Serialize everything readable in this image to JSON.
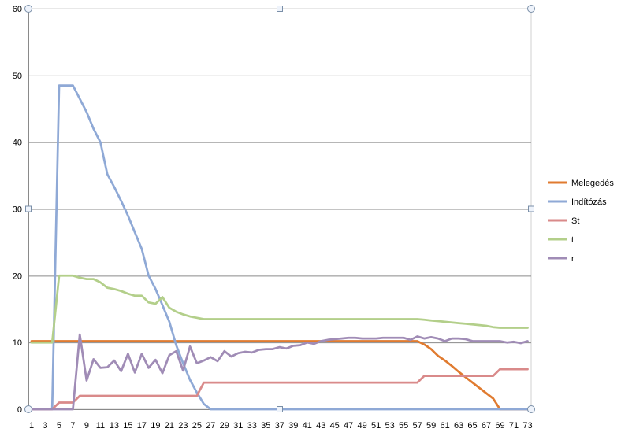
{
  "chart_data": {
    "type": "line",
    "x": [
      1,
      2,
      3,
      4,
      5,
      6,
      7,
      8,
      9,
      10,
      11,
      12,
      13,
      14,
      15,
      16,
      17,
      18,
      19,
      20,
      21,
      22,
      23,
      24,
      25,
      26,
      27,
      28,
      29,
      30,
      31,
      32,
      33,
      34,
      35,
      36,
      37,
      38,
      39,
      40,
      41,
      42,
      43,
      44,
      45,
      46,
      47,
      48,
      49,
      50,
      51,
      52,
      53,
      54,
      55,
      56,
      57,
      58,
      59,
      60,
      61,
      62,
      63,
      64,
      65,
      66,
      67,
      68,
      69,
      70,
      71,
      72,
      73
    ],
    "x_tick_labels": [
      "1",
      "3",
      "5",
      "7",
      "9",
      "11",
      "13",
      "15",
      "17",
      "19",
      "21",
      "23",
      "25",
      "27",
      "29",
      "31",
      "33",
      "35",
      "37",
      "39",
      "41",
      "43",
      "45",
      "47",
      "49",
      "51",
      "53",
      "55",
      "57",
      "59",
      "61",
      "63",
      "65",
      "67",
      "69",
      "71",
      "73"
    ],
    "y_tick_labels": [
      "0",
      "10",
      "20",
      "30",
      "40",
      "50",
      "60"
    ],
    "ylim": [
      0,
      60
    ],
    "grid": true,
    "legend_position": "right",
    "series": [
      {
        "name": "Melegedés",
        "color": "#E07B30",
        "values": [
          10.2,
          10.2,
          10.2,
          10.2,
          10.2,
          10.2,
          10.2,
          10.2,
          10.2,
          10.2,
          10.2,
          10.2,
          10.2,
          10.2,
          10.2,
          10.2,
          10.2,
          10.2,
          10.2,
          10.2,
          10.2,
          10.2,
          10.2,
          10.2,
          10.2,
          10.2,
          10.2,
          10.2,
          10.2,
          10.2,
          10.2,
          10.2,
          10.2,
          10.2,
          10.2,
          10.2,
          10.2,
          10.2,
          10.2,
          10.2,
          10.2,
          10.2,
          10.2,
          10.2,
          10.2,
          10.2,
          10.2,
          10.2,
          10.2,
          10.2,
          10.2,
          10.2,
          10.2,
          10.2,
          10.2,
          10.2,
          10.2,
          9.7,
          9.0,
          8.0,
          7.3,
          6.5,
          5.6,
          4.8,
          4.0,
          3.2,
          2.4,
          1.6,
          0,
          0,
          0,
          0,
          0
        ]
      },
      {
        "name": "Indítózás",
        "color": "#8FA9D6",
        "values": [
          0,
          0,
          0,
          0,
          48.5,
          48.5,
          48.5,
          46.5,
          44.5,
          42.0,
          40.0,
          35.2,
          33.3,
          31.2,
          29.0,
          26.5,
          24.0,
          20.0,
          18.0,
          15.6,
          13.1,
          9.6,
          6.9,
          4.4,
          2.5,
          0.8,
          0,
          0,
          0,
          0,
          0,
          0,
          0,
          0,
          0,
          0,
          0,
          0,
          0,
          0,
          0,
          0,
          0,
          0,
          0,
          0,
          0,
          0,
          0,
          0,
          0,
          0,
          0,
          0,
          0,
          0,
          0,
          0,
          0,
          0,
          0,
          0,
          0,
          0,
          0,
          0,
          0,
          0,
          0,
          0,
          0,
          0,
          0
        ]
      },
      {
        "name": "St",
        "color": "#D98A8A",
        "values": [
          0,
          0,
          0,
          0,
          1,
          1,
          1,
          2,
          2,
          2,
          2,
          2,
          2,
          2,
          2,
          2,
          2,
          2,
          2,
          2,
          2,
          2,
          2,
          2,
          2,
          4,
          4,
          4,
          4,
          4,
          4,
          4,
          4,
          4,
          4,
          4,
          4,
          4,
          4,
          4,
          4,
          4,
          4,
          4,
          4,
          4,
          4,
          4,
          4,
          4,
          4,
          4,
          4,
          4,
          4,
          4,
          4,
          5,
          5,
          5,
          5,
          5,
          5,
          5,
          5,
          5,
          5,
          5,
          6,
          6,
          6,
          6,
          6
        ]
      },
      {
        "name": "t",
        "color": "#B3CF8A",
        "values": [
          10,
          10,
          10,
          10,
          20,
          20,
          20,
          19.7,
          19.5,
          19.5,
          19.0,
          18.2,
          18.0,
          17.7,
          17.3,
          17.0,
          17.0,
          16.0,
          15.8,
          16.8,
          15.2,
          14.6,
          14.2,
          13.9,
          13.7,
          13.5,
          13.5,
          13.5,
          13.5,
          13.5,
          13.5,
          13.5,
          13.5,
          13.5,
          13.5,
          13.5,
          13.5,
          13.5,
          13.5,
          13.5,
          13.5,
          13.5,
          13.5,
          13.5,
          13.5,
          13.5,
          13.5,
          13.5,
          13.5,
          13.5,
          13.5,
          13.5,
          13.5,
          13.5,
          13.5,
          13.5,
          13.5,
          13.4,
          13.3,
          13.2,
          13.1,
          13.0,
          12.9,
          12.8,
          12.7,
          12.6,
          12.5,
          12.3,
          12.2,
          12.2,
          12.2,
          12.2,
          12.2
        ]
      },
      {
        "name": "r",
        "color": "#A08CB6",
        "values": [
          0,
          0,
          0,
          0,
          0,
          0,
          0,
          11.2,
          4.3,
          7.5,
          6.2,
          6.3,
          7.3,
          5.7,
          8.3,
          5.5,
          8.3,
          6.2,
          7.4,
          5.4,
          8.1,
          8.7,
          5.8,
          9.4,
          6.9,
          7.3,
          7.8,
          7.2,
          8.7,
          7.9,
          8.4,
          8.6,
          8.5,
          8.9,
          9.0,
          9.0,
          9.3,
          9.1,
          9.5,
          9.6,
          10.0,
          9.8,
          10.2,
          10.4,
          10.5,
          10.6,
          10.7,
          10.7,
          10.6,
          10.6,
          10.6,
          10.7,
          10.7,
          10.7,
          10.7,
          10.4,
          10.9,
          10.6,
          10.8,
          10.6,
          10.2,
          10.6,
          10.6,
          10.5,
          10.2,
          10.2,
          10.2,
          10.2,
          10.2,
          10.0,
          10.1,
          9.9,
          10.2
        ]
      }
    ]
  }
}
